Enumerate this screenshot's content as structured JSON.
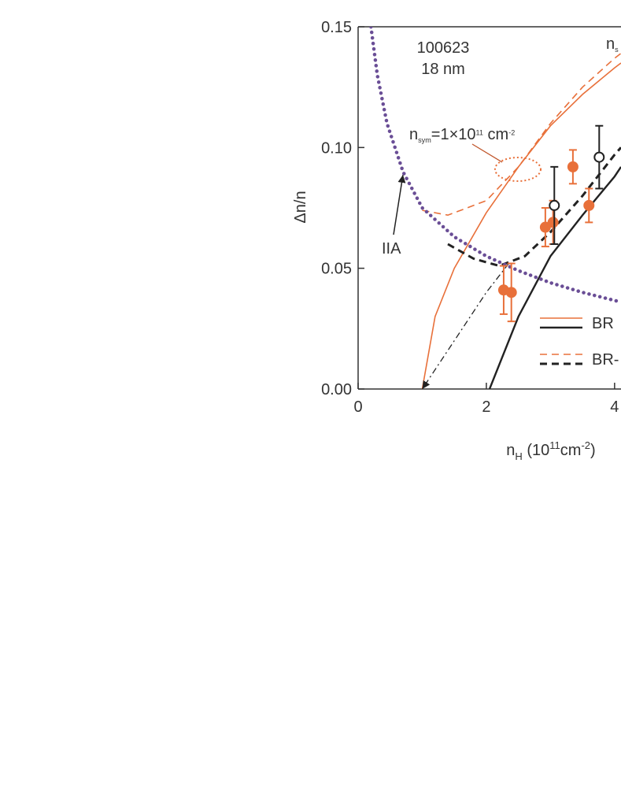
{
  "chart_data": {
    "type": "line",
    "xlim": [
      0,
      4.1
    ],
    "ylim": [
      0,
      0.15
    ],
    "xticks": [
      0,
      2,
      4
    ],
    "yticks": [
      {
        "value": 0,
        "label": "0.00"
      },
      {
        "value": 0.05,
        "label": "0.05"
      },
      {
        "value": 0.1,
        "label": "0.10"
      },
      {
        "value": 0.15,
        "label": "0.15"
      }
    ],
    "ylabel": "Δn/n",
    "xlabel": [
      {
        "text": "n"
      },
      {
        "text": "H",
        "style": "sub"
      },
      {
        "text": " (10"
      },
      {
        "text": "11",
        "style": "sup"
      },
      {
        "text": "cm"
      },
      {
        "text": "-2",
        "style": "sup"
      },
      {
        "text": ")"
      }
    ],
    "series": [
      {
        "color": "#e8703a",
        "dash": "solid",
        "width": 1.6,
        "x": [
          1,
          1.2,
          1.5,
          2,
          2.5,
          3,
          3.5,
          4,
          4.1
        ],
        "values": [
          0,
          0.03,
          0.05,
          0.073,
          0.092,
          0.109,
          0.122,
          0.133,
          0.135
        ]
      },
      {
        "color": "#222222",
        "dash": "solid",
        "width": 2.4,
        "x": [
          2.05,
          2.5,
          3,
          3.5,
          4,
          4.1
        ],
        "values": [
          0,
          0.03,
          0.055,
          0.072,
          0.088,
          0.092
        ]
      },
      {
        "color": "#e8703a",
        "dash": "dashed",
        "width": 1.6,
        "x": [
          1,
          1.4,
          2,
          2.5,
          3,
          3.5,
          4,
          4.1
        ],
        "values": [
          0.074,
          0.072,
          0.078,
          0.092,
          0.11,
          0.125,
          0.137,
          0.139
        ]
      },
      {
        "color": "#222222",
        "dash": "dashed",
        "width": 3,
        "x": [
          1.4,
          1.8,
          2.2,
          2.6,
          3,
          3.5,
          4,
          4.1
        ],
        "values": [
          0.06,
          0.054,
          0.051,
          0.055,
          0.065,
          0.08,
          0.097,
          0.1
        ]
      },
      {
        "color": "#6a4e96",
        "dash": "dotted",
        "width": 4.5,
        "x": [
          0.2,
          0.3,
          0.45,
          0.7,
          1,
          1.5,
          2,
          2.5,
          3,
          3.5,
          4.1
        ],
        "values": [
          0.15,
          0.13,
          0.11,
          0.09,
          0.075,
          0.063,
          0.055,
          0.049,
          0.044,
          0.04,
          0.036
        ]
      },
      {
        "color": "#222222",
        "dash": "dashdot",
        "width": 1.3,
        "arrow": true,
        "x": [
          2.35,
          2,
          1.5,
          1
        ],
        "values": [
          0.052,
          0.04,
          0.02,
          0
        ]
      }
    ],
    "points": [
      {
        "color": "#e8703a",
        "filled": true,
        "x": [
          2.27,
          2.39,
          2.92,
          3.04,
          3.35,
          3.6
        ],
        "values": [
          0.041,
          0.04,
          0.067,
          0.069,
          0.092,
          0.076
        ],
        "errors": [
          0.01,
          0.012,
          0.008,
          0.009,
          0.007,
          0.007
        ]
      },
      {
        "color": "#222222",
        "filled": false,
        "x": [
          3.06,
          3.76
        ],
        "values": [
          0.076,
          0.096
        ],
        "errors": [
          0.016,
          0.013
        ]
      }
    ],
    "legend": [
      {
        "label": "BR",
        "series": [
          0,
          1
        ]
      },
      {
        "label": "BR-",
        "series": [
          2,
          3
        ]
      }
    ],
    "annotations": [
      {
        "parts": [
          {
            "text": "100623"
          }
        ]
      },
      {
        "parts": [
          {
            "text": "18 nm"
          }
        ]
      },
      {
        "parts": [
          {
            "text": "n"
          },
          {
            "text": "s",
            "style": "sub"
          }
        ]
      },
      {
        "parts": [
          {
            "text": "n"
          },
          {
            "text": "sym",
            "style": "sub"
          },
          {
            "text": "=1×10"
          },
          {
            "text": "11",
            "style": "sup"
          },
          {
            "text": " cm"
          },
          {
            "text": "-2",
            "style": "sup"
          }
        ]
      },
      {
        "parts": [
          {
            "text": "IIA"
          }
        ]
      }
    ]
  }
}
